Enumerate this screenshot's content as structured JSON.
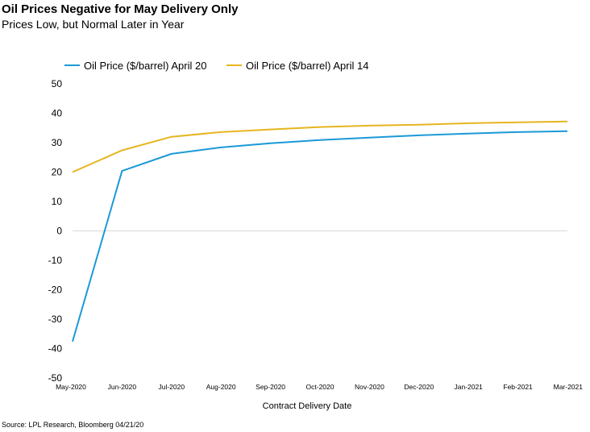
{
  "title": "Oil Prices Negative for May Delivery Only",
  "subtitle": "Prices Low, but Normal Later in Year",
  "source": "Source: LPL Research, Bloomberg 04/21/20",
  "colors": {
    "series_april20": "#1a9ad6",
    "series_april14": "#e6b520",
    "zero_line": "#d9d9d9",
    "text": "#000000"
  },
  "chart_data": {
    "type": "line",
    "title": "Oil Prices Negative for May Delivery Only",
    "subtitle": "Prices Low, but Normal Later in Year",
    "xlabel": "Contract Delivery Date",
    "ylabel": "",
    "ylim": [
      -50,
      50
    ],
    "yticks": [
      50,
      40,
      30,
      20,
      10,
      0,
      -10,
      -20,
      -30,
      -40,
      -50
    ],
    "grid": false,
    "legend_position": "top",
    "categories": [
      "May-2020",
      "Jun-2020",
      "Jul-2020",
      "Aug-2020",
      "Sep-2020",
      "Oct-2020",
      "Nov-2020",
      "Dec-2020",
      "Jan-2021",
      "Feb-2021",
      "Mar-2021"
    ],
    "series": [
      {
        "name": "Oil Price ($/barrel) April 20",
        "color": "#1a9ad6",
        "values": [
          -37.6,
          20.4,
          26.2,
          28.4,
          29.8,
          30.9,
          31.7,
          32.5,
          33.1,
          33.6,
          33.9
        ]
      },
      {
        "name": "Oil Price ($/barrel) April 14",
        "color": "#e6b520",
        "values": [
          20.0,
          27.4,
          32.0,
          33.6,
          34.5,
          35.3,
          35.8,
          36.1,
          36.6,
          36.9,
          37.2
        ]
      }
    ]
  }
}
